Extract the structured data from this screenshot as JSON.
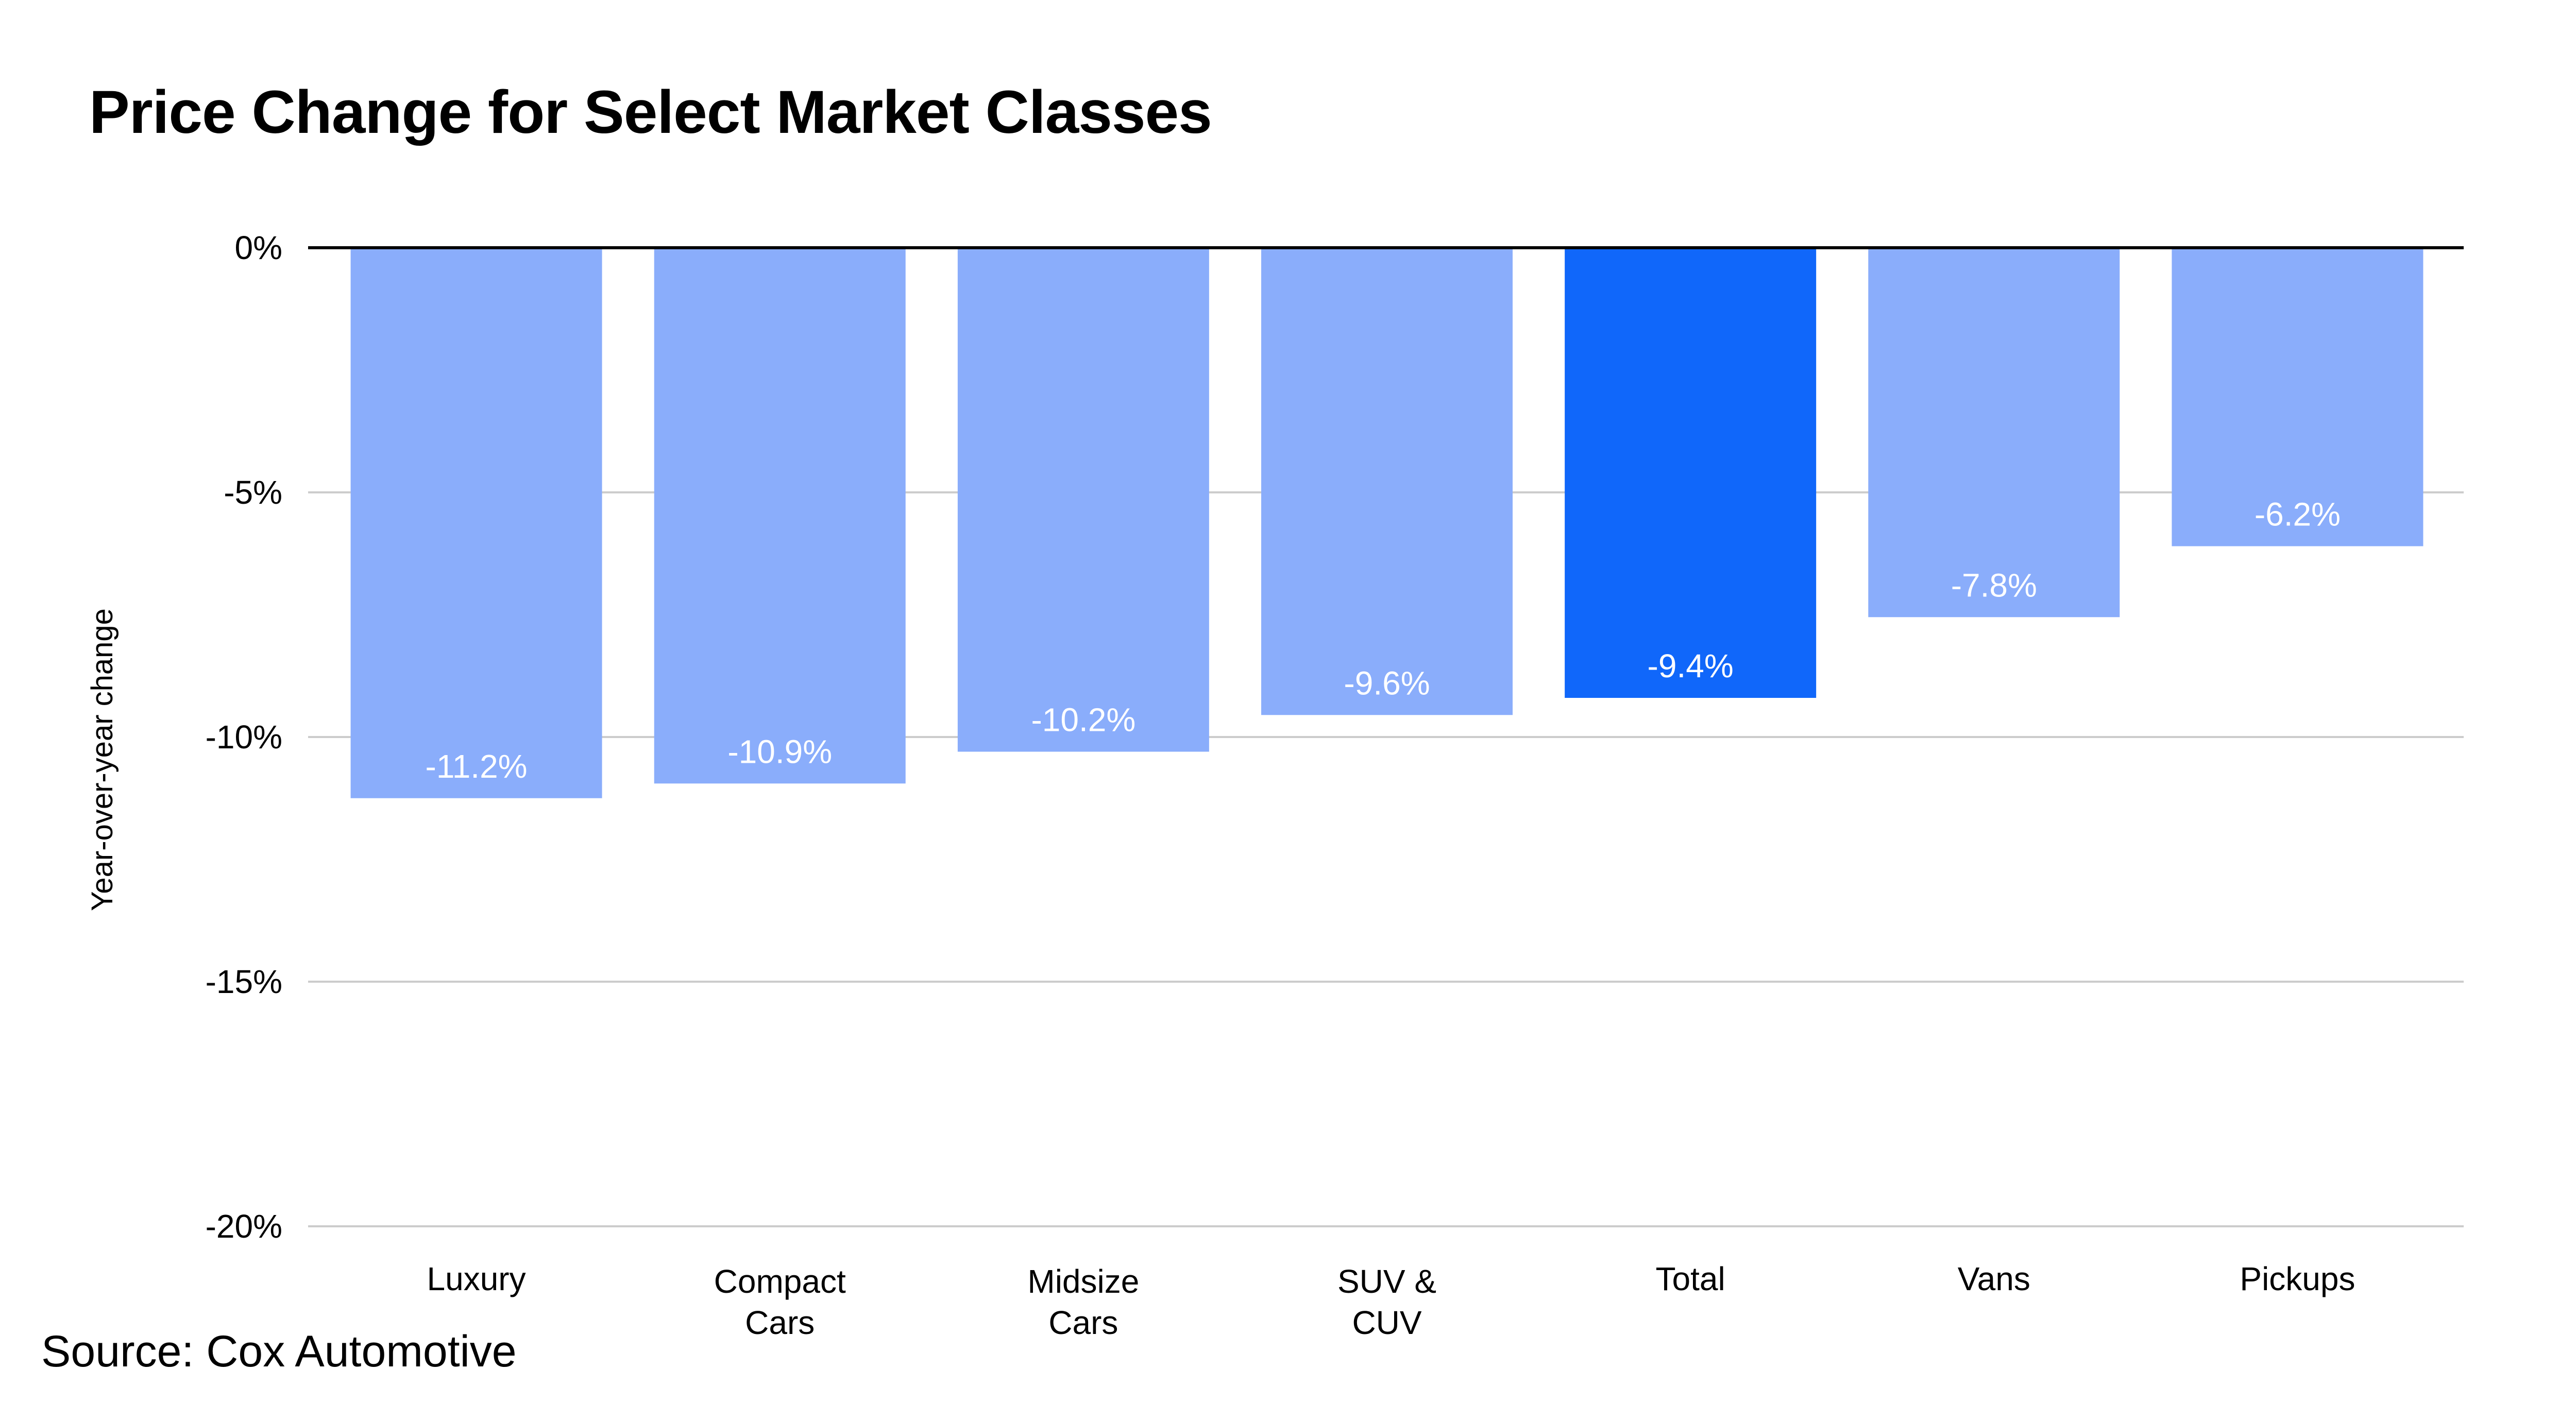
{
  "title": "Price Change for Select Market Classes",
  "source": "Source: Cox Automotive",
  "colors": {
    "bar": "#8aadfb",
    "highlight": "#1067fa",
    "grid": "#cccccc",
    "zero_line": "#000000",
    "data_label": "#ffffff"
  },
  "chart_data": {
    "type": "bar",
    "categories": [
      [
        "Luxury"
      ],
      [
        "Compact",
        "Cars"
      ],
      [
        "Midsize",
        "Cars"
      ],
      [
        "SUV &",
        "CUV"
      ],
      [
        "Total"
      ],
      [
        "Vans"
      ],
      [
        "Pickups"
      ]
    ],
    "values": [
      -11.2,
      -10.9,
      -10.2,
      -9.6,
      -9.4,
      -7.8,
      -6.2
    ],
    "bar_heights": [
      -11.25,
      -10.95,
      -10.3,
      -9.55,
      -9.2,
      -7.55,
      -6.1
    ],
    "data_labels": [
      "-11.2%",
      "-10.9%",
      "-10.2%",
      "-9.6%",
      "-9.4%",
      "-7.8%",
      "-6.2%"
    ],
    "highlight_index": 4,
    "title": "Price Change for Select Market Classes",
    "xlabel": "",
    "ylabel": "Year-over-year change",
    "ylim": [
      -20,
      0
    ],
    "yticks": [
      0,
      -5,
      -10,
      -15,
      -20
    ],
    "ytick_labels": [
      "0%",
      "-5%",
      "-10%",
      "-15%",
      "-20%"
    ],
    "grid": true,
    "legend": "none"
  }
}
